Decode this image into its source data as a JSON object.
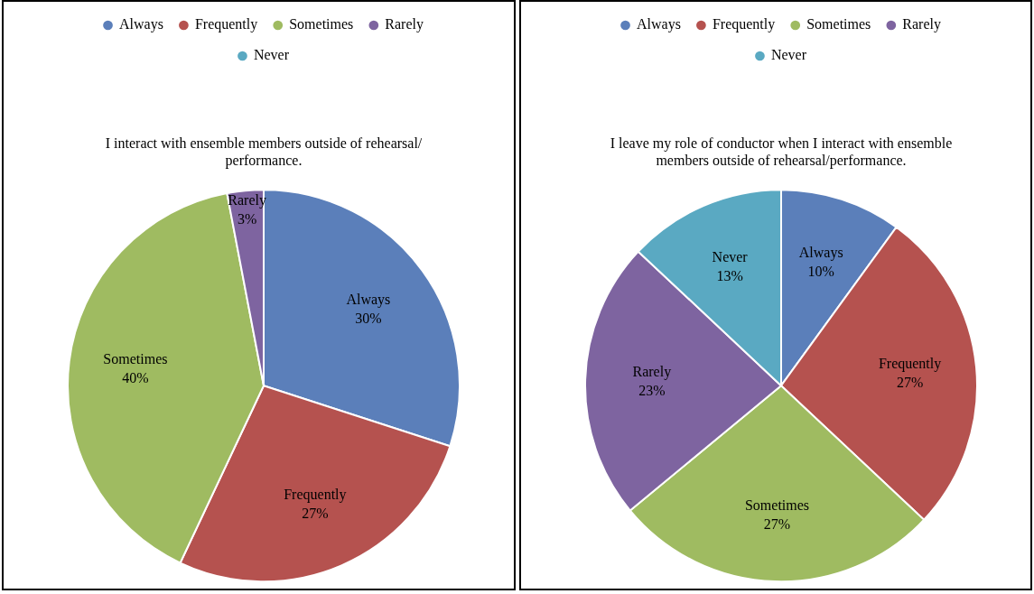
{
  "chart_data": [
    {
      "type": "pie",
      "title": "I interact with ensemble members outside of rehearsal/ performance.",
      "categories": [
        "Always",
        "Frequently",
        "Sometimes",
        "Rarely",
        "Never"
      ],
      "values": [
        30,
        27,
        40,
        3,
        0
      ],
      "colors": [
        "#5b7fba",
        "#b5524f",
        "#9fbb61",
        "#7e64a0",
        "#5aa9c2"
      ],
      "value_labels": [
        "30%",
        "27%",
        "40%",
        "3%",
        null
      ],
      "legend": "top"
    },
    {
      "type": "pie",
      "title": "I leave my role of conductor when I interact with ensemble members outside of rehearsal/performance.",
      "categories": [
        "Always",
        "Frequently",
        "Sometimes",
        "Rarely",
        "Never"
      ],
      "values": [
        10,
        27,
        27,
        23,
        13
      ],
      "colors": [
        "#5b7fba",
        "#b5524f",
        "#9fbb61",
        "#7e64a0",
        "#5aa9c2"
      ],
      "value_labels": [
        "10%",
        "27%",
        "27%",
        "23%",
        "13%"
      ],
      "legend": "top"
    }
  ]
}
